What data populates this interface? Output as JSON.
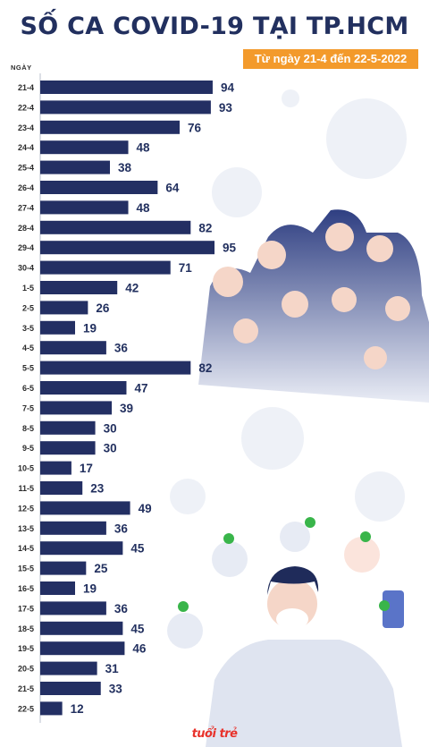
{
  "title": "SỐ CA COVID-19 TẠI TP.HCM",
  "subtitle": "Từ ngày 21-4 đến 22-5-2022",
  "logo_text": "tuổi trẻ",
  "colors": {
    "bar": "#232f63",
    "title": "#22305f",
    "badge": "#f39a2b",
    "label": "#22305f"
  },
  "chart_data": {
    "type": "bar",
    "orientation": "horizontal",
    "title": "SỐ CA COVID-19 TẠI TP.HCM",
    "subtitle": "Từ ngày 21-4 đến 22-5-2022",
    "xlabel": "",
    "ylabel": "NGÀY",
    "categories": [
      "21-4",
      "22-4",
      "23-4",
      "24-4",
      "25-4",
      "26-4",
      "27-4",
      "28-4",
      "29-4",
      "30-4",
      "1-5",
      "2-5",
      "3-5",
      "4-5",
      "5-5",
      "6-5",
      "7-5",
      "8-5",
      "9-5",
      "10-5",
      "11-5",
      "12-5",
      "13-5",
      "14-5",
      "15-5",
      "16-5",
      "17-5",
      "18-5",
      "19-5",
      "20-5",
      "21-5",
      "22-5"
    ],
    "values": [
      94,
      93,
      76,
      48,
      38,
      64,
      48,
      82,
      95,
      71,
      42,
      26,
      19,
      36,
      82,
      47,
      39,
      30,
      30,
      17,
      23,
      49,
      36,
      45,
      25,
      19,
      36,
      45,
      46,
      31,
      33,
      12
    ],
    "grid": false,
    "legend": "none"
  }
}
